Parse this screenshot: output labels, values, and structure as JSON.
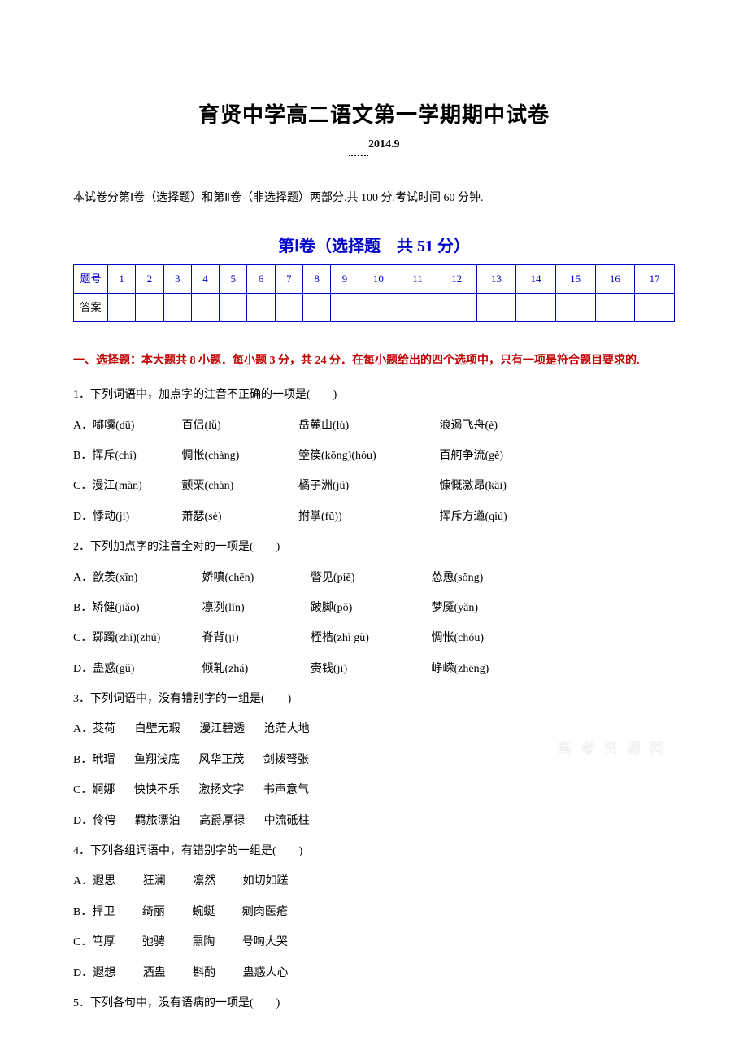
{
  "title": {
    "main": "育贤中学高二语文第一学期期中试卷",
    "date": "2014.9"
  },
  "description": "本试卷分第Ⅰ卷（选择题）和第Ⅱ卷（非选择题）两部分.共 100 分.考试时间 60 分钟.",
  "section1_title": "第Ⅰ卷（选择题　共 51 分）",
  "answer_table": {
    "row_label_1": "题号",
    "row_label_2": "答案",
    "numbers": [
      "1",
      "2",
      "3",
      "4",
      "5",
      "6",
      "7",
      "8",
      "9",
      "10",
      "11",
      "12",
      "13",
      "14",
      "15",
      "16",
      "17"
    ]
  },
  "instructions": "一、选择题：本大题共 8 小题．每小题 3 分，共 24 分．在每小题给出的四个选项中，只有一项是符合题目要求的.",
  "q1": {
    "stem": "1．下列词语中，加点字的注音不正确的一项是(　　)",
    "opts": {
      "a": [
        "A．嘟囔(dū)",
        "百侣(lǚ)",
        "岳麓山(lù)",
        "浪遏飞舟(è)"
      ],
      "b": [
        "B．挥斥(chì)",
        "惆怅(chàng)",
        "箜篌(kōng)(hóu)",
        "百舸争流(gě)"
      ],
      "c": [
        "C．漫江(màn)",
        "颤栗(chàn)",
        "橘子洲(jú)",
        "慷慨激昂(kǎi)"
      ],
      "d": [
        "D．悸动(jì)",
        "萧瑟(sè)",
        "拊掌(fǔ))",
        "挥斥方遒(qiú)"
      ]
    }
  },
  "q2": {
    "stem": "2．下列加点字的注音全对的一项是(　　)",
    "opts": {
      "a": [
        "A．歆羡(xīn)",
        "娇嗔(chēn)",
        "瞥见(piē)",
        "怂恿(sǒng)"
      ],
      "b": [
        "B．矫健(jiǎo)",
        "凛冽(lǐn)",
        "跛脚(pǒ)",
        "梦魇(yǎn)"
      ],
      "c": [
        "C．踯躅(zhí)(zhú)",
        "脊背(jī)",
        "桎梏(zhì gù)",
        "惆怅(chóu)"
      ],
      "d": [
        "D．蛊惑(gǔ)",
        "倾轧(zhá)",
        "赍钱(jī)",
        "峥嵘(zhēng)"
      ]
    }
  },
  "q3": {
    "stem": "3．下列词语中，没有错别字的一组是(　　)",
    "opts": {
      "a": [
        "A．茭荷",
        "白壁无瑕",
        "漫江碧透",
        "沧茫大地"
      ],
      "b": [
        "B．玳瑁",
        "鱼翔浅底",
        "风华正茂",
        "剑拨弩张"
      ],
      "c": [
        "C．婀娜",
        "怏怏不乐",
        "激扬文字",
        "书声意气"
      ],
      "d": [
        "D．伶俜",
        "羁旅漂泊",
        "高爵厚禄",
        "中流砥柱"
      ]
    }
  },
  "q4": {
    "stem": "4．下列各组词语中，有错别字的一组是(　　)",
    "opts": {
      "a": [
        "A．遐思",
        "狂澜",
        "凛然",
        "如切如蹉"
      ],
      "b": [
        "B．捍卫",
        "绮丽",
        "蜿蜒",
        "剜肉医疮"
      ],
      "c": [
        "C．笃厚",
        "弛骋",
        "熏陶",
        "号啕大哭"
      ],
      "d": [
        "D．遐想",
        "酒蛊",
        "斟酌",
        "蛊惑人心"
      ]
    }
  },
  "q5": {
    "stem": "5．下列各句中，没有语病的一项是(　　)"
  },
  "watermark": "高 考 资 源 网"
}
